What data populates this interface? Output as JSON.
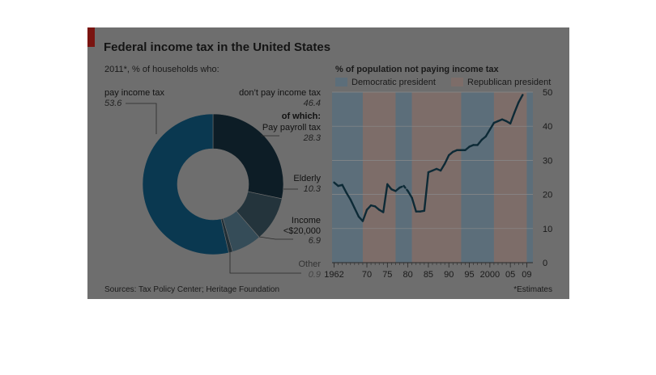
{
  "title": "Federal income tax in the United States",
  "subtitle": "2011*, % of households who:",
  "source": "Sources: Tax Policy Center; Heritage Foundation",
  "footnote": "*Estimates",
  "colors": {
    "panel": "#6e6e6e",
    "plot_bg": "#7a7a7a",
    "dem": "#5c6e7a",
    "rep": "#7d6d69",
    "line": "#0d2a36"
  },
  "donut": {
    "pay_label": "pay income tax",
    "pay_value": "53.6",
    "dont_label": "don’t pay income tax",
    "dont_value": "46.4",
    "of_which": "of which:",
    "payroll_label": "Pay payroll tax",
    "payroll_value": "28.3",
    "elderly_label": "Elderly",
    "elderly_value": "10.3",
    "income_label_1": "Income",
    "income_label_2": "<$20,000",
    "income_value": "6.9",
    "other_label": "Other",
    "other_value": "0.9"
  },
  "chart_data": [
    {
      "type": "pie",
      "title": "Federal income tax in the United States",
      "subtitle": "2011*, % of households who:",
      "slices": [
        {
          "label": "Pay payroll tax",
          "value": 28.3,
          "color": "#0d1d26"
        },
        {
          "label": "Elderly",
          "value": 10.3,
          "color": "#24343c"
        },
        {
          "label": "Income <$20,000",
          "value": 6.9,
          "color": "#354c58"
        },
        {
          "label": "Other",
          "value": 0.9,
          "color": "#1f2e36"
        },
        {
          "label": "pay income tax",
          "value": 53.6,
          "color": "#0a3850"
        }
      ]
    },
    {
      "type": "line",
      "title": "% of population not paying income tax",
      "legend": [
        "Democratic president",
        "Republican president"
      ],
      "legend_position": "top",
      "x_tick_labels": [
        "1962",
        "70",
        "75",
        "80",
        "85",
        "90",
        "95",
        "2000",
        "05",
        "09"
      ],
      "x_ticks": [
        1962,
        1970,
        1975,
        1980,
        1985,
        1990,
        1995,
        2000,
        2005,
        2009
      ],
      "xlim": [
        1961.5,
        2010.5
      ],
      "ylim": [
        0,
        50
      ],
      "y_ticks": [
        0,
        10,
        20,
        30,
        40,
        50
      ],
      "y_axis_side": "right",
      "grid": true,
      "shading": [
        {
          "party": "Democratic president",
          "from": 1961.5,
          "to": 1969
        },
        {
          "party": "Republican president",
          "from": 1969,
          "to": 1977
        },
        {
          "party": "Democratic president",
          "from": 1977,
          "to": 1981
        },
        {
          "party": "Republican president",
          "from": 1981,
          "to": 1993
        },
        {
          "party": "Democratic president",
          "from": 1993,
          "to": 2001
        },
        {
          "party": "Republican president",
          "from": 2001,
          "to": 2009
        },
        {
          "party": "Democratic president",
          "from": 2009,
          "to": 2010.5
        }
      ],
      "series": [
        {
          "x": [
            1962,
            1963,
            1964,
            1965,
            1966,
            1967,
            1968,
            1969,
            1970,
            1971,
            1972,
            1973,
            1974,
            1975,
            1976,
            1977,
            1978,
            1979,
            1980,
            1981,
            1982,
            1983,
            1984,
            1985,
            1986,
            1987,
            1988,
            1989,
            1990,
            1991,
            1992,
            1993,
            1994,
            1995,
            1996,
            1997,
            1998,
            1999,
            2000,
            2001,
            2002,
            2003,
            2004,
            2005,
            2006,
            2007,
            2008,
            2009
          ],
          "y": [
            23.5,
            22.5,
            22.8,
            20.5,
            18.5,
            16,
            13.5,
            12.2,
            15.5,
            16.8,
            16.5,
            15.5,
            14.8,
            23,
            21.5,
            21,
            22,
            22.5,
            21,
            19,
            15,
            15,
            15.2,
            26.5,
            27,
            27.5,
            27,
            29,
            31.5,
            32.5,
            33,
            33,
            33,
            34,
            34.5,
            34.5,
            36,
            37,
            39,
            41,
            41.5,
            42,
            41.5,
            40.8,
            44,
            47,
            49.2,
            null
          ],
          "estimate_segments": [
            [
              1978,
              1980
            ]
          ]
        }
      ]
    }
  ]
}
